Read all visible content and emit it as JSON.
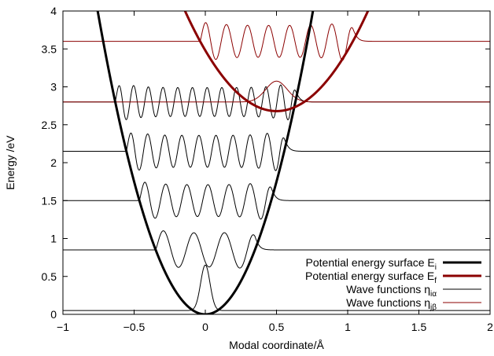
{
  "chart_data": {
    "type": "line",
    "xlabel": "Modal coordinate/Å",
    "ylabel": "Energy /eV",
    "xlim": [
      -1,
      2
    ],
    "ylim": [
      0,
      4
    ],
    "x_ticks": [
      -1,
      -0.5,
      0,
      0.5,
      1,
      1.5,
      2
    ],
    "x_tick_labels": [
      "−1",
      "−0.5",
      "0",
      "0.5",
      "1",
      "1.5",
      "2"
    ],
    "y_ticks": [
      0,
      0.5,
      1,
      1.5,
      2,
      2.5,
      3,
      3.5,
      4
    ],
    "y_tick_labels": [
      "0",
      "0.5",
      "1",
      "1.5",
      "2",
      "2.5",
      "3",
      "3.5",
      "4"
    ],
    "grid": false,
    "legend_position": "bottom-right",
    "legend": [
      {
        "text": "Potential energy surface E",
        "sub": "i",
        "color": "#000000",
        "width": 3
      },
      {
        "text": "Potential energy surface E",
        "sub": "f",
        "color": "#8b0000",
        "width": 3
      },
      {
        "text": "Wave functions η",
        "sub": "iα",
        "color": "#000000",
        "width": 1
      },
      {
        "text": "Wave functions η",
        "sub": "jβ",
        "color": "#8b0000",
        "width": 1
      }
    ],
    "surfaces": [
      {
        "name": "Potential energy surface Ei",
        "type": "parabola",
        "x0": 0,
        "e0": 0,
        "curvature": 7.0,
        "color": "#000000"
      },
      {
        "name": "Potential energy surface Ef",
        "type": "parabola",
        "x0": 0.5,
        "e0": 2.68,
        "curvature": 3.2,
        "color": "#8b0000"
      }
    ],
    "wavefunctions": [
      {
        "surface": 0,
        "level": 0.05,
        "n": 0,
        "amplitude": 0.6,
        "color": "#000000"
      },
      {
        "surface": 0,
        "level": 0.85,
        "n": 6,
        "amplitude": 0.45,
        "color": "#000000"
      },
      {
        "surface": 0,
        "level": 1.5,
        "n": 12,
        "amplitude": 0.42,
        "color": "#000000"
      },
      {
        "surface": 0,
        "level": 2.15,
        "n": 18,
        "amplitude": 0.42,
        "color": "#000000"
      },
      {
        "surface": 0,
        "level": 2.8,
        "n": 24,
        "amplitude": 0.38,
        "color": "#000000"
      },
      {
        "surface": 1,
        "level": 2.8,
        "n": 0,
        "amplitude": 0.55,
        "color": "#8b0000"
      },
      {
        "surface": 1,
        "level": 3.6,
        "n": 14,
        "amplitude": 0.42,
        "color": "#8b0000"
      }
    ]
  }
}
